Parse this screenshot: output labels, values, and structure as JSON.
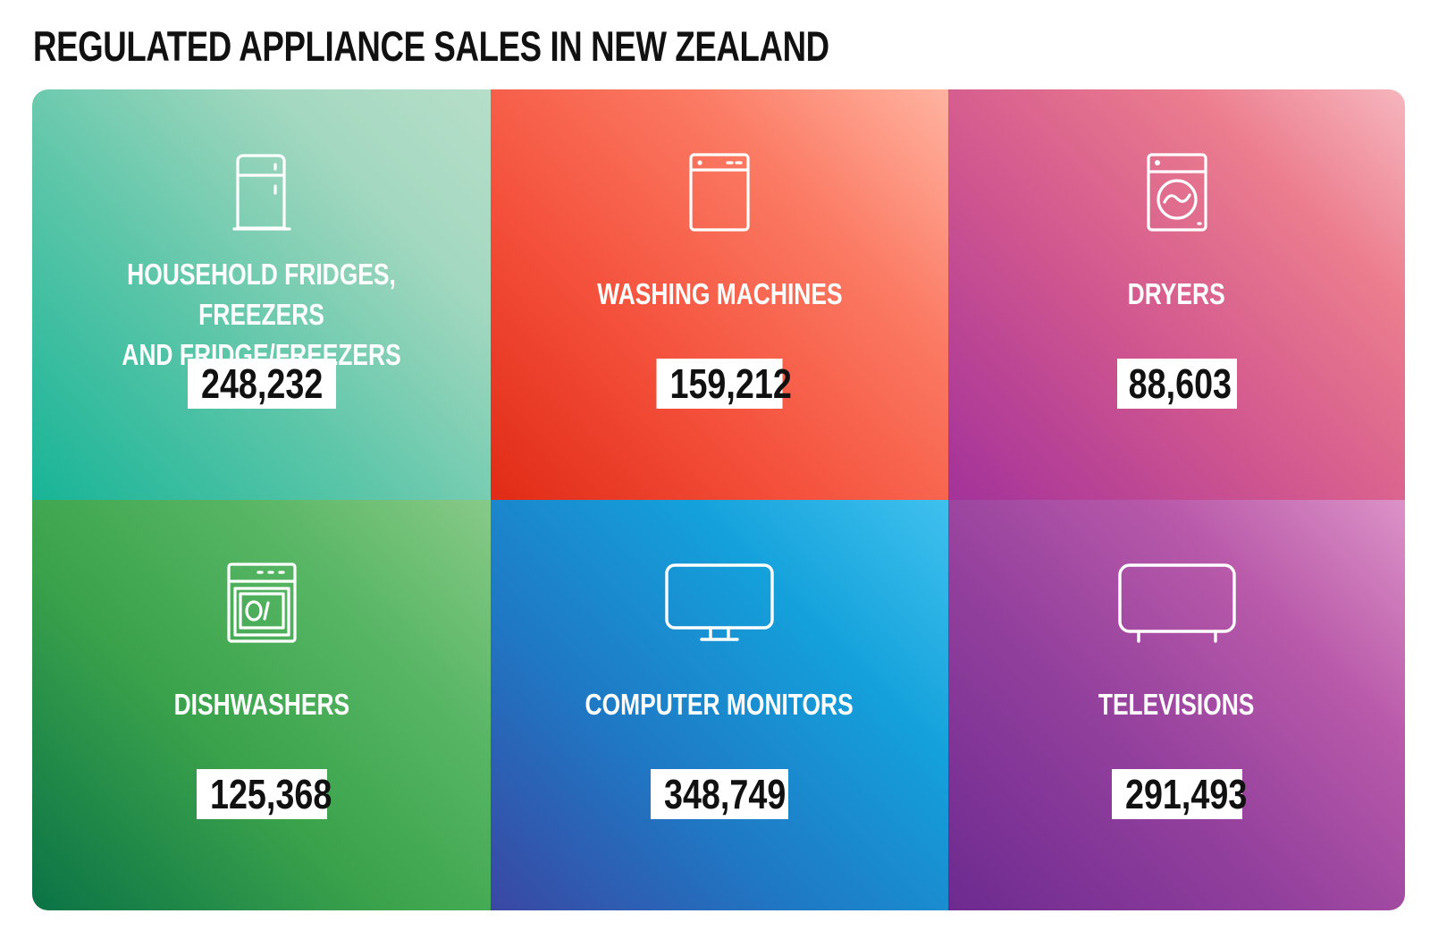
{
  "title": "REGULATED APPLIANCE SALES IN NEW ZEALAND",
  "colors": {
    "title_text": "#111111",
    "tile_text": "#ffffff",
    "value_box_bg": "#ffffff",
    "value_text": "#111111"
  },
  "tiles": [
    {
      "label": "HOUSEHOLD FRIDGES, FREEZERS\nAND FRIDGE/FREEZERS",
      "value": "248,232",
      "icon": "fridge-icon",
      "color": "#5ec6a9"
    },
    {
      "label": "WASHING MACHINES",
      "value": "159,212",
      "icon": "washing-machine-icon",
      "color": "#f4503b"
    },
    {
      "label": "DRYERS",
      "value": "88,603",
      "icon": "dryer-icon",
      "color": "#d0568f"
    },
    {
      "label": "DISHWASHERS",
      "value": "125,368",
      "icon": "dishwasher-icon",
      "color": "#3aa24b"
    },
    {
      "label": "COMPUTER MONITORS",
      "value": "348,749",
      "icon": "monitor-icon",
      "color": "#1f78c4"
    },
    {
      "label": "TELEVISIONS",
      "value": "291,493",
      "icon": "television-icon",
      "color": "#93409d"
    }
  ]
}
